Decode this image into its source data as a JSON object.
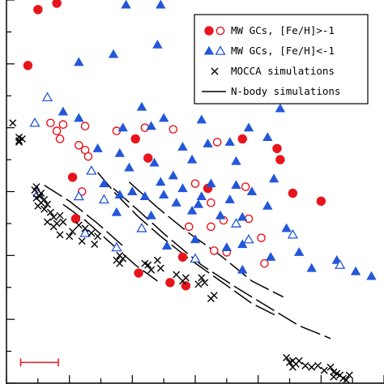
{
  "chart_data": {
    "type": "scatter",
    "title": "",
    "xlabel": "",
    "ylabel": "",
    "xlim": [
      0,
      12
    ],
    "ylim": [
      0,
      12
    ],
    "grid": false,
    "legend_position": "top-right",
    "colors": {
      "red": "#e8141c",
      "blue": "#2357d8",
      "black": "#000000"
    },
    "series": [
      {
        "name": "MW GCs, [Fe/H]>-1",
        "kind": "filled-circle",
        "color": "#e8141c",
        "points": [
          [
            1.0,
            11.7
          ],
          [
            1.6,
            11.9
          ],
          [
            0.68,
            9.95
          ],
          [
            4.1,
            7.65
          ],
          [
            7.5,
            7.65
          ],
          [
            8.6,
            7.35
          ],
          [
            8.7,
            7.0
          ],
          [
            4.5,
            7.05
          ],
          [
            2.1,
            6.45
          ],
          [
            6.4,
            6.1
          ],
          [
            9.1,
            5.95
          ],
          [
            10.0,
            5.7
          ],
          [
            2.2,
            5.15
          ],
          [
            5.6,
            3.95
          ],
          [
            4.2,
            3.45
          ],
          [
            5.2,
            3.15
          ],
          [
            5.7,
            3.05
          ]
        ]
      },
      {
        "name": "",
        "kind": "open-circle",
        "color": "#e8141c",
        "points": [
          [
            1.4,
            8.15
          ],
          [
            1.8,
            8.1
          ],
          [
            1.6,
            7.9
          ],
          [
            2.5,
            8.05
          ],
          [
            3.5,
            7.9
          ],
          [
            4.4,
            8.0
          ],
          [
            5.3,
            7.95
          ],
          [
            1.7,
            7.65
          ],
          [
            6.7,
            7.55
          ],
          [
            2.3,
            7.45
          ],
          [
            2.5,
            7.3
          ],
          [
            2.6,
            7.1
          ],
          [
            6.0,
            6.25
          ],
          [
            7.6,
            6.15
          ],
          [
            2.4,
            6.0
          ],
          [
            6.5,
            5.65
          ],
          [
            7.7,
            5.15
          ],
          [
            6.9,
            5.1
          ],
          [
            5.8,
            4.9
          ],
          [
            6.5,
            4.9
          ],
          [
            8.1,
            4.55
          ],
          [
            6.6,
            4.15
          ],
          [
            7.0,
            4.1
          ],
          [
            8.2,
            3.75
          ]
        ]
      },
      {
        "name": "MW GCs, [Fe/H]<-1",
        "kind": "filled-triangle",
        "color": "#2357d8",
        "points": [
          [
            3.8,
            11.85
          ],
          [
            4.9,
            11.85
          ],
          [
            4.8,
            10.6
          ],
          [
            3.4,
            10.3
          ],
          [
            2.3,
            10.05
          ],
          [
            6.6,
            10.0
          ],
          [
            6.7,
            9.25
          ],
          [
            4.3,
            8.65
          ],
          [
            8.7,
            8.6
          ],
          [
            1.8,
            8.5
          ],
          [
            2.3,
            8.3
          ],
          [
            5.0,
            8.3
          ],
          [
            6.2,
            8.25
          ],
          [
            3.7,
            8.0
          ],
          [
            4.6,
            8.05
          ],
          [
            7.7,
            8.0
          ],
          [
            8.3,
            7.7
          ],
          [
            7.1,
            7.55
          ],
          [
            6.4,
            7.5
          ],
          [
            5.6,
            7.4
          ],
          [
            2.9,
            7.35
          ],
          [
            3.6,
            7.2
          ],
          [
            5.9,
            7.0
          ],
          [
            7.3,
            6.95
          ],
          [
            4.7,
            6.9
          ],
          [
            3.9,
            6.75
          ],
          [
            8.5,
            6.4
          ],
          [
            4.9,
            6.3
          ],
          [
            5.3,
            6.5
          ],
          [
            3.1,
            6.25
          ],
          [
            7.3,
            6.2
          ],
          [
            6.5,
            6.25
          ],
          [
            4.0,
            6.0
          ],
          [
            5.6,
            6.1
          ],
          [
            7.8,
            6.0
          ],
          [
            3.6,
            5.9
          ],
          [
            5.0,
            5.9
          ],
          [
            6.2,
            5.85
          ],
          [
            4.4,
            5.85
          ],
          [
            7.1,
            5.75
          ],
          [
            5.4,
            5.65
          ],
          [
            6.1,
            5.6
          ],
          [
            8.3,
            5.55
          ],
          [
            5.9,
            5.4
          ],
          [
            4.6,
            5.25
          ],
          [
            3.5,
            5.35
          ],
          [
            6.8,
            5.25
          ],
          [
            7.5,
            5.2
          ],
          [
            8.9,
            4.85
          ],
          [
            6.0,
            4.5
          ],
          [
            5.1,
            4.3
          ],
          [
            7.5,
            4.35
          ],
          [
            7.0,
            4.25
          ],
          [
            9.3,
            4.1
          ],
          [
            8.4,
            3.95
          ],
          [
            10.5,
            3.85
          ],
          [
            7.5,
            3.55
          ],
          [
            9.7,
            3.6
          ],
          [
            11.1,
            3.5
          ],
          [
            11.6,
            3.35
          ]
        ]
      },
      {
        "name": "",
        "kind": "open-triangle",
        "color": "#2357d8",
        "points": [
          [
            1.3,
            8.95
          ],
          [
            0.9,
            8.15
          ],
          [
            2.7,
            6.65
          ],
          [
            1.0,
            5.95
          ],
          [
            2.3,
            5.85
          ],
          [
            3.1,
            5.75
          ],
          [
            4.3,
            4.85
          ],
          [
            7.3,
            5.0
          ],
          [
            2.5,
            4.7
          ],
          [
            9.1,
            4.65
          ],
          [
            7.7,
            4.5
          ],
          [
            3.5,
            4.25
          ],
          [
            6.0,
            3.9
          ],
          [
            10.6,
            3.7
          ]
        ]
      },
      {
        "name": "MOCCA simulations",
        "kind": "cross",
        "color": "#000000",
        "points": [
          [
            0.2,
            8.15
          ],
          [
            0.4,
            7.7
          ],
          [
            0.4,
            7.6
          ],
          [
            0.5,
            7.65
          ],
          [
            0.4,
            7.55
          ],
          [
            0.95,
            6.15
          ],
          [
            0.9,
            6.05
          ],
          [
            1.1,
            5.95
          ],
          [
            1.05,
            5.85
          ],
          [
            0.95,
            5.8
          ],
          [
            1.2,
            5.75
          ],
          [
            1.1,
            5.65
          ],
          [
            1.0,
            5.55
          ],
          [
            1.3,
            5.6
          ],
          [
            1.2,
            5.45
          ],
          [
            1.4,
            5.35
          ],
          [
            1.5,
            5.2
          ],
          [
            1.7,
            5.25
          ],
          [
            1.8,
            5.05
          ],
          [
            1.3,
            5.05
          ],
          [
            1.6,
            5.0
          ],
          [
            1.5,
            4.9
          ],
          [
            2.3,
            4.95
          ],
          [
            2.5,
            4.85
          ],
          [
            2.1,
            4.75
          ],
          [
            2.7,
            4.7
          ],
          [
            1.7,
            4.65
          ],
          [
            2.0,
            4.6
          ],
          [
            2.9,
            4.6
          ],
          [
            2.4,
            4.45
          ],
          [
            2.8,
            4.35
          ],
          [
            3.6,
            4.0
          ],
          [
            3.5,
            3.85
          ],
          [
            3.7,
            3.9
          ],
          [
            3.6,
            3.75
          ],
          [
            4.4,
            3.75
          ],
          [
            4.8,
            3.85
          ],
          [
            4.5,
            3.7
          ],
          [
            4.9,
            3.6
          ],
          [
            4.6,
            3.55
          ],
          [
            5.4,
            3.4
          ],
          [
            5.7,
            3.3
          ],
          [
            5.6,
            3.2
          ],
          [
            6.2,
            3.3
          ],
          [
            6.3,
            3.15
          ],
          [
            6.1,
            3.1
          ],
          [
            6.6,
            2.75
          ],
          [
            6.5,
            2.65
          ],
          [
            8.9,
            0.8
          ],
          [
            9.0,
            0.65
          ],
          [
            9.1,
            0.7
          ],
          [
            9.2,
            0.6
          ],
          [
            9.3,
            0.7
          ],
          [
            9.1,
            0.5
          ],
          [
            9.5,
            0.55
          ],
          [
            9.7,
            0.5
          ],
          [
            9.9,
            0.55
          ],
          [
            10.1,
            0.4
          ],
          [
            10.3,
            0.5
          ],
          [
            10.4,
            0.35
          ],
          [
            10.5,
            0.3
          ],
          [
            10.6,
            0.25
          ],
          [
            10.4,
            0.2
          ],
          [
            10.7,
            0.15
          ],
          [
            10.9,
            0.25
          ],
          [
            10.8,
            0.1
          ]
        ]
      },
      {
        "name": "N-body simulations",
        "kind": "dashed-line",
        "color": "#000000",
        "lines": [
          [
            [
              1.2,
              6.2
            ],
            [
              2.0,
              5.7
            ],
            [
              2.9,
              5.0
            ],
            [
              3.7,
              4.3
            ]
          ],
          [
            [
              1.8,
              5.6
            ],
            [
              2.5,
              5.1
            ],
            [
              3.3,
              4.4
            ],
            [
              4.1,
              3.7
            ],
            [
              4.8,
              3.2
            ]
          ],
          [
            [
              2.9,
              6.6
            ],
            [
              3.5,
              5.9
            ],
            [
              4.2,
              5.2
            ],
            [
              4.9,
              4.6
            ],
            [
              5.8,
              3.9
            ],
            [
              6.8,
              3.2
            ],
            [
              7.8,
              2.5
            ],
            [
              8.6,
              2.1
            ]
          ],
          [
            [
              3.4,
              6.1
            ],
            [
              4.2,
              5.4
            ],
            [
              5.1,
              4.6
            ],
            [
              6.2,
              3.7
            ],
            [
              7.3,
              3.0
            ],
            [
              8.3,
              2.4
            ],
            [
              9.3,
              1.8
            ],
            [
              10.3,
              1.4
            ]
          ],
          [
            [
              3.9,
              6.3
            ],
            [
              4.8,
              5.5
            ],
            [
              5.8,
              4.7
            ],
            [
              6.8,
              4.0
            ],
            [
              7.8,
              3.2
            ],
            [
              8.8,
              2.7
            ]
          ]
        ]
      }
    ],
    "error_bar": {
      "x": [
        0.45,
        1.65
      ],
      "y": 0.65
    },
    "legend": [
      {
        "label": "MW GCs, [Fe/H]>-1",
        "filled_marker": "filled-circle",
        "open_marker": "open-circle",
        "color": "#e8141c"
      },
      {
        "label": "MW GCs, [Fe/H]<-1",
        "filled_marker": "filled-triangle",
        "open_marker": "open-triangle",
        "color": "#2357d8"
      },
      {
        "label": "MOCCA simulations",
        "filled_marker": "cross",
        "open_marker": "",
        "color": "#000000"
      },
      {
        "label": "N-body simulations",
        "filled_marker": "line",
        "open_marker": "",
        "color": "#000000"
      }
    ]
  }
}
